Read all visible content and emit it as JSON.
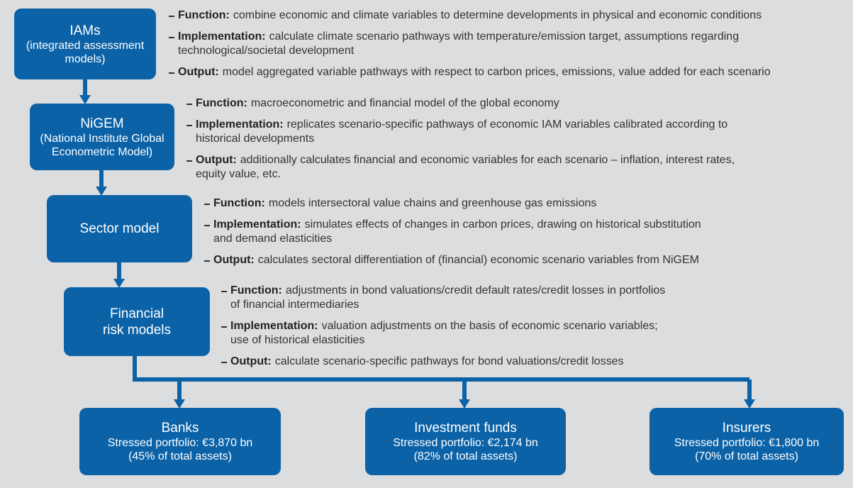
{
  "nodes": [
    {
      "title": [
        "IAMs"
      ],
      "subtitle": [
        "(integrated assessment",
        "models)"
      ],
      "bullets": [
        {
          "label": "Function:",
          "lines": [
            "combine economic and climate variables to determine developments in physical and economic conditions"
          ]
        },
        {
          "label": "Implementation:",
          "lines": [
            "calculate climate scenario pathways with temperature/emission target, assumptions regarding",
            "technological/societal development"
          ]
        },
        {
          "label": "Output:",
          "lines": [
            "model aggregated variable pathways with respect to carbon prices, emissions, value added for each scenario"
          ]
        }
      ]
    },
    {
      "title": [
        "NiGEM"
      ],
      "subtitle": [
        "(National Institute Global",
        "Econometric Model)"
      ],
      "bullets": [
        {
          "label": "Function:",
          "lines": [
            "macroeconometric and financial model of the global economy"
          ]
        },
        {
          "label": "Implementation:",
          "lines": [
            "replicates scenario-specific pathways of economic IAM variables calibrated according to",
            "historical developments"
          ]
        },
        {
          "label": "Output:",
          "lines": [
            "additionally calculates financial and economic variables for each scenario – inflation, interest rates,",
            "equity value, etc."
          ]
        }
      ]
    },
    {
      "title": [
        "Sector model"
      ],
      "bullets": [
        {
          "label": "Function:",
          "lines": [
            "models intersectoral value chains and greenhouse gas emissions"
          ]
        },
        {
          "label": "Implementation:",
          "lines": [
            "simulates effects of changes in carbon prices, drawing on historical substitution",
            "and demand elasticities"
          ]
        },
        {
          "label": "Output:",
          "lines": [
            "calculates sectoral differentiation of (financial) economic scenario variables from NiGEM"
          ]
        }
      ]
    },
    {
      "title": [
        "Financial",
        "risk models"
      ],
      "bullets": [
        {
          "label": "Function:",
          "lines": [
            "adjustments in bond valuations/credit default rates/credit losses in portfolios",
            "of financial intermediaries"
          ]
        },
        {
          "label": "Implementation:",
          "lines": [
            "valuation adjustments on the basis of economic scenario variables;",
            "use of historical elasticities"
          ]
        },
        {
          "label": "Output:",
          "lines": [
            "calculate scenario-specific pathways for bond valuations/credit losses"
          ]
        }
      ]
    }
  ],
  "outputs": [
    {
      "title": "Banks",
      "lines": [
        "Stressed portfolio: €3,870 bn",
        "(45% of total assets)"
      ]
    },
    {
      "title": "Investment funds",
      "lines": [
        "Stressed portfolio: €2,174 bn",
        "(82% of total assets)"
      ]
    },
    {
      "title": "Insurers",
      "lines": [
        "Stressed portfolio: €1,800 bn",
        "(70% of total assets)"
      ]
    }
  ]
}
